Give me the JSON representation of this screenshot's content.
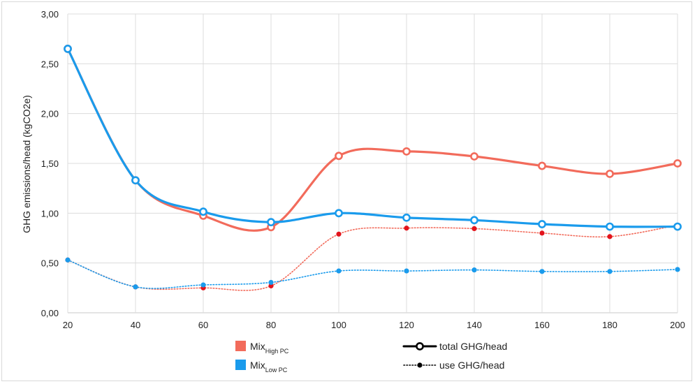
{
  "chart_data": {
    "type": "line",
    "ylabel": "GHG emissions/head (kgCO2e)",
    "xlabel": "",
    "x": [
      20,
      40,
      60,
      80,
      100,
      120,
      140,
      160,
      180,
      200
    ],
    "ylim": [
      0,
      3
    ],
    "x_ticks": [
      "20",
      "40",
      "60",
      "80",
      "100",
      "120",
      "140",
      "160",
      "180",
      "200"
    ],
    "y_ticks": [
      "0,00",
      "0,50",
      "1,00",
      "1,50",
      "2,00",
      "2,50",
      "3,00"
    ],
    "grid": true,
    "series": [
      {
        "name": "Mix High PC – total GHG/head",
        "color": "#f26b5b",
        "style": "solid",
        "values": [
          2.65,
          1.33,
          0.975,
          0.86,
          1.575,
          1.62,
          1.57,
          1.475,
          1.395,
          1.5
        ]
      },
      {
        "name": "Mix Low PC – total GHG/head",
        "color": "#1a9bec",
        "style": "solid",
        "values": [
          2.65,
          1.33,
          1.015,
          0.91,
          1.0,
          0.955,
          0.93,
          0.89,
          0.865,
          0.865
        ]
      },
      {
        "name": "Mix High PC – use GHG/head",
        "color": "#f26b5b",
        "marker": "#e3131b",
        "style": "dotted",
        "values": [
          0.53,
          0.26,
          0.25,
          0.27,
          0.79,
          0.85,
          0.845,
          0.8,
          0.765,
          0.88
        ]
      },
      {
        "name": "Mix Low PC – use GHG/head",
        "color": "#1a9bec",
        "marker": "#1a9bec",
        "style": "dotted",
        "values": [
          0.53,
          0.26,
          0.28,
          0.305,
          0.42,
          0.42,
          0.43,
          0.415,
          0.415,
          0.435
        ]
      }
    ],
    "legend": {
      "position": "bottom",
      "colors": [
        {
          "main": "Mix",
          "sub": "High PC",
          "color": "#f26b5b"
        },
        {
          "main": "Mix",
          "sub": "Low PC",
          "color": "#1a9bec"
        }
      ],
      "styles": [
        {
          "label": "total GHG/head",
          "style": "solid"
        },
        {
          "label": "use GHG/head",
          "style": "dotted"
        }
      ]
    }
  }
}
